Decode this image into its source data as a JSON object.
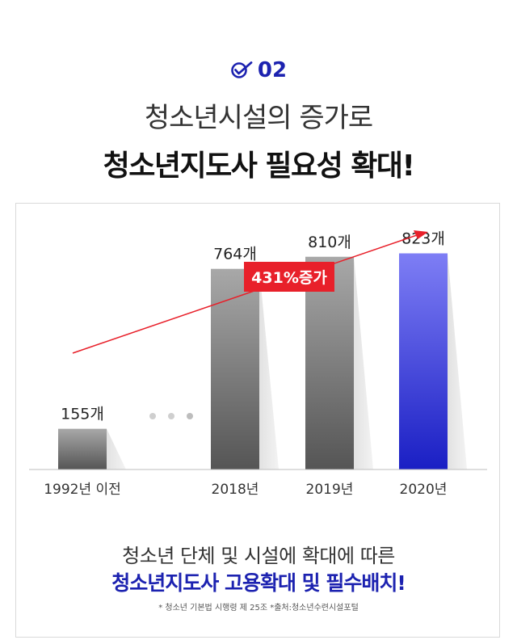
{
  "header": {
    "step_number": "02",
    "title_line1": "청소년시설의 증가로",
    "title_line2": "청소년지도사 필요성 확대!"
  },
  "chart_data": {
    "type": "bar",
    "categories": [
      "1992년 이전",
      "2018년",
      "2019년",
      "2020년"
    ],
    "values": [
      155,
      764,
      810,
      823
    ],
    "value_labels": [
      "155개",
      "764개",
      "810개",
      "823개"
    ],
    "growth_label": "431%증가",
    "ylim": [
      0,
      1000
    ],
    "grid": false,
    "colors": {
      "bar_gray_top": "#a8a8a8",
      "bar_gray_bottom": "#555555",
      "bar_highlight_top": "#7e7ef5",
      "bar_highlight_bottom": "#1a1fc4",
      "arrow": "#e8202a",
      "badge_bg": "#e8202a",
      "shadow": "#e6e6e6",
      "dots": "#cfcfcf"
    }
  },
  "footer": {
    "line1": "청소년 단체 및 시설에 확대에 따른",
    "line2": "청소년지도사 고용확대 및 필수배치!",
    "note": "* 청소년 기본법 시행령 제 25조 *출처:청소년수련시설포털"
  },
  "colors": {
    "accent": "#1c22b0"
  }
}
